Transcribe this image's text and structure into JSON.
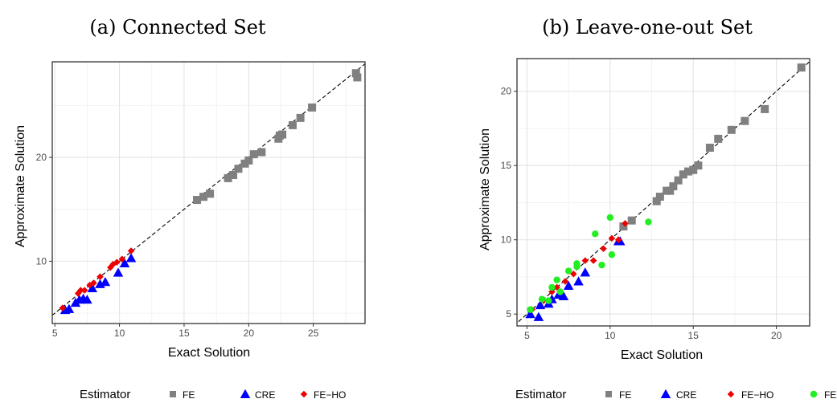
{
  "chart_data": [
    {
      "type": "scatter",
      "title": "(a) Connected Set",
      "xlabel": "Exact Solution",
      "ylabel": "Approximate Solution",
      "xlim": [
        4.8,
        29.0
      ],
      "ylim": [
        4.0,
        29.2
      ],
      "xticks": [
        "5",
        "10",
        "15",
        "20",
        "25"
      ],
      "yticks": [
        "10",
        "20"
      ],
      "grid": true,
      "reference_line": "y = x (dashed)",
      "legend": {
        "title": "Estimator",
        "position": "bottom",
        "entries": [
          {
            "label": "FE",
            "color": "#808080",
            "shape": "square"
          },
          {
            "label": "CRE",
            "color": "#0000ff",
            "shape": "triangle"
          },
          {
            "label": "FE−HO",
            "color": "#ee0000",
            "shape": "diamond"
          }
        ]
      },
      "series": [
        {
          "name": "FE",
          "color": "#808080",
          "shape": "square",
          "points": [
            [
              16.0,
              15.9
            ],
            [
              16.5,
              16.2
            ],
            [
              17.0,
              16.5
            ],
            [
              18.4,
              18.0
            ],
            [
              18.8,
              18.3
            ],
            [
              19.2,
              18.9
            ],
            [
              19.7,
              19.4
            ],
            [
              20.0,
              19.7
            ],
            [
              20.4,
              20.3
            ],
            [
              21.0,
              20.5
            ],
            [
              22.3,
              21.8
            ],
            [
              22.4,
              22.1
            ],
            [
              22.6,
              22.2
            ],
            [
              23.4,
              23.1
            ],
            [
              24.0,
              23.8
            ],
            [
              24.9,
              24.8
            ],
            [
              28.3,
              28.1
            ],
            [
              28.4,
              27.7
            ]
          ]
        },
        {
          "name": "CRE",
          "color": "#0000ff",
          "shape": "triangle",
          "points": [
            [
              5.8,
              5.3
            ],
            [
              6.1,
              5.4
            ],
            [
              6.6,
              6.0
            ],
            [
              6.9,
              6.3
            ],
            [
              7.2,
              6.4
            ],
            [
              7.5,
              6.3
            ],
            [
              7.9,
              7.4
            ],
            [
              8.5,
              7.8
            ],
            [
              8.9,
              8.0
            ],
            [
              9.9,
              8.9
            ],
            [
              10.4,
              9.8
            ],
            [
              10.9,
              10.3
            ]
          ]
        },
        {
          "name": "FE−HO",
          "color": "#ee0000",
          "shape": "diamond",
          "points": [
            [
              5.6,
              5.5
            ],
            [
              6.8,
              6.9
            ],
            [
              7.0,
              7.2
            ],
            [
              7.3,
              7.2
            ],
            [
              7.7,
              7.7
            ],
            [
              8.0,
              7.9
            ],
            [
              8.5,
              8.5
            ],
            [
              9.3,
              9.4
            ],
            [
              9.5,
              9.7
            ],
            [
              9.8,
              9.9
            ],
            [
              10.2,
              10.2
            ],
            [
              10.9,
              11.0
            ]
          ]
        }
      ]
    },
    {
      "type": "scatter",
      "title": "(b) Leave-one-out Set",
      "xlabel": "Exact Solution",
      "ylabel": "Approximate Solution",
      "xlim": [
        4.4,
        22.0
      ],
      "ylim": [
        4.2,
        22.2
      ],
      "xticks": [
        "5",
        "10",
        "15",
        "20"
      ],
      "yticks": [
        "5",
        "10",
        "15",
        "20"
      ],
      "grid": true,
      "reference_line": "y = x (dashed)",
      "legend": {
        "title": "Estimator",
        "position": "bottom",
        "entries": [
          {
            "label": "FE",
            "color": "#808080",
            "shape": "square"
          },
          {
            "label": "CRE",
            "color": "#0000ff",
            "shape": "triangle"
          },
          {
            "label": "FE−HO",
            "color": "#ee0000",
            "shape": "diamond"
          },
          {
            "label": "FE−HE",
            "color": "#22ee22",
            "shape": "circle"
          }
        ]
      },
      "series": [
        {
          "name": "FE",
          "color": "#808080",
          "shape": "square",
          "points": [
            [
              10.8,
              10.9
            ],
            [
              11.3,
              11.3
            ],
            [
              12.8,
              12.6
            ],
            [
              13.0,
              12.9
            ],
            [
              13.4,
              13.3
            ],
            [
              13.6,
              13.3
            ],
            [
              13.8,
              13.6
            ],
            [
              14.1,
              14.0
            ],
            [
              14.4,
              14.4
            ],
            [
              14.7,
              14.6
            ],
            [
              15.0,
              14.7
            ],
            [
              15.3,
              15.0
            ],
            [
              16.0,
              16.2
            ],
            [
              16.5,
              16.8
            ],
            [
              17.3,
              17.4
            ],
            [
              18.1,
              18.0
            ],
            [
              19.3,
              18.8
            ],
            [
              21.5,
              21.6
            ]
          ]
        },
        {
          "name": "CRE",
          "color": "#0000ff",
          "shape": "triangle",
          "points": [
            [
              5.2,
              5.0
            ],
            [
              5.7,
              4.8
            ],
            [
              5.8,
              5.6
            ],
            [
              6.3,
              5.7
            ],
            [
              6.5,
              6.0
            ],
            [
              6.9,
              6.3
            ],
            [
              7.2,
              6.2
            ],
            [
              7.5,
              6.9
            ],
            [
              8.1,
              7.2
            ],
            [
              8.5,
              7.8
            ],
            [
              10.5,
              9.9
            ],
            [
              10.6,
              9.9
            ]
          ]
        },
        {
          "name": "FE−HO",
          "color": "#ee0000",
          "shape": "diamond",
          "points": [
            [
              5.3,
              5.3
            ],
            [
              6.0,
              5.9
            ],
            [
              6.5,
              6.5
            ],
            [
              6.8,
              6.8
            ],
            [
              7.3,
              7.2
            ],
            [
              7.8,
              7.7
            ],
            [
              8.5,
              8.6
            ],
            [
              9.0,
              8.6
            ],
            [
              9.6,
              9.4
            ],
            [
              10.1,
              10.1
            ],
            [
              10.5,
              10.0
            ],
            [
              10.9,
              11.1
            ]
          ]
        },
        {
          "name": "FE−HE",
          "color": "#22ee22",
          "shape": "circle",
          "points": [
            [
              5.2,
              5.3
            ],
            [
              5.9,
              6.0
            ],
            [
              6.3,
              5.9
            ],
            [
              6.5,
              6.8
            ],
            [
              6.8,
              7.3
            ],
            [
              7.0,
              6.5
            ],
            [
              7.5,
              7.9
            ],
            [
              8.0,
              8.2
            ],
            [
              8.0,
              8.4
            ],
            [
              9.1,
              10.4
            ],
            [
              9.5,
              8.3
            ],
            [
              10.0,
              11.5
            ],
            [
              10.1,
              9.0
            ],
            [
              12.3,
              11.2
            ]
          ]
        }
      ]
    }
  ]
}
